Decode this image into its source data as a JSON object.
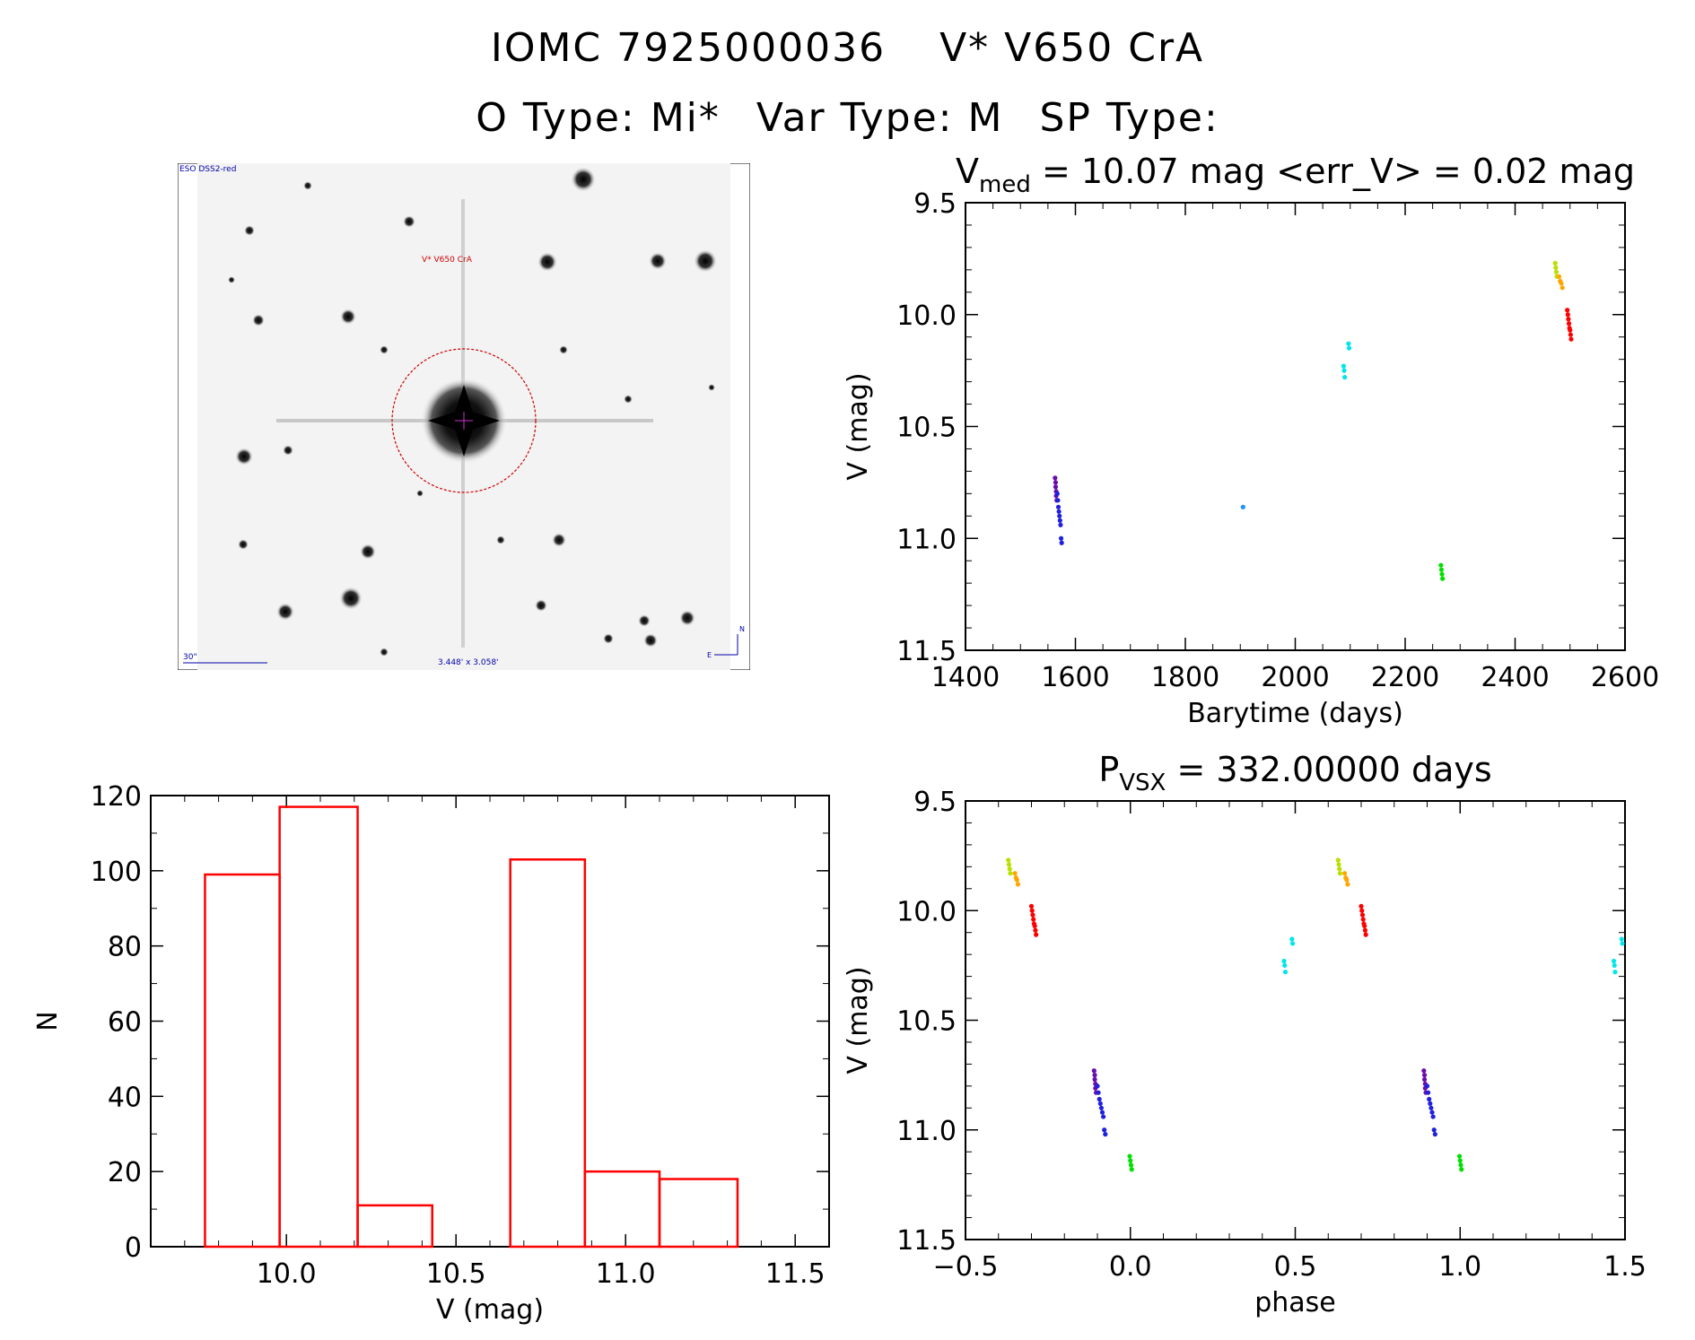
{
  "header": {
    "object_id": "IOMC 7925000036",
    "object_name": "V* V650 CrA",
    "o_type": "O Type: Mi*",
    "var_type": "Var Type: M",
    "sp_type": "SP Type:"
  },
  "finder_chart": {
    "survey_label": "ESO DSS2-red",
    "target_label": "V* V650 CrA",
    "scale_label": "30\"",
    "fov_label": "3.448' x 3.058'",
    "north_label": "N",
    "east_label": "E"
  },
  "colors": {
    "histogram": "#ff0000",
    "axis": "#000000",
    "circle": "#cc0000"
  },
  "chart_data": [
    {
      "id": "light_curve",
      "type": "scatter",
      "title_prefix": "V",
      "title_sub": "med",
      "title_rest": "= 10.07 mag <err_V> = 0.02 mag",
      "xlabel": "Barytime (days)",
      "ylabel": "V (mag)",
      "xlim": [
        1400,
        2600
      ],
      "ylim": [
        11.5,
        9.5
      ],
      "xticks": [
        1400,
        1600,
        1800,
        2000,
        2200,
        2400,
        2600
      ],
      "xtick_labels": [
        "1400",
        "1600",
        "1800",
        "2000",
        "2200",
        "2400",
        "2600"
      ],
      "yticks": [
        9.5,
        10.0,
        10.5,
        11.0,
        11.5
      ],
      "ytick_labels": [
        "9.5",
        "10.0",
        "10.5",
        "11.0",
        "11.5"
      ],
      "groups": [
        {
          "color": "#6a0dad",
          "x": [
            1563,
            1564,
            1564,
            1565,
            1565,
            1566
          ],
          "y": [
            10.73,
            10.75,
            10.77,
            10.79,
            10.81,
            10.83
          ]
        },
        {
          "color": "#2020e0",
          "x": [
            1567,
            1568,
            1569,
            1570,
            1571,
            1572,
            1573,
            1574,
            1575
          ],
          "y": [
            10.8,
            10.83,
            10.86,
            10.88,
            10.9,
            10.92,
            10.94,
            11.0,
            11.02
          ]
        },
        {
          "color": "#1e90ff",
          "x": [
            1905
          ],
          "y": [
            10.86
          ]
        },
        {
          "color": "#00e5ee",
          "x": [
            2088,
            2089,
            2090,
            2097,
            2098
          ],
          "y": [
            10.23,
            10.25,
            10.28,
            10.13,
            10.15
          ]
        },
        {
          "color": "#00e000",
          "x": [
            2265,
            2266,
            2267,
            2268
          ],
          "y": [
            11.12,
            11.14,
            11.16,
            11.18
          ]
        },
        {
          "color": "#b8e000",
          "x": [
            2473,
            2474,
            2475,
            2476
          ],
          "y": [
            9.77,
            9.79,
            9.81,
            9.83
          ]
        },
        {
          "color": "#ffa500",
          "x": [
            2480,
            2482,
            2484,
            2486
          ],
          "y": [
            9.83,
            9.85,
            9.86,
            9.88
          ]
        },
        {
          "color": "#ff0000",
          "x": [
            2495,
            2496,
            2497,
            2498,
            2499,
            2500,
            2501,
            2502
          ],
          "y": [
            9.98,
            10.0,
            10.02,
            10.04,
            10.06,
            10.07,
            10.09,
            10.11
          ]
        }
      ]
    },
    {
      "id": "phase_curve",
      "type": "scatter",
      "title_prefix": "P",
      "title_sub": "VSX",
      "title_rest": "= 332.00000 days",
      "xlabel": "phase",
      "ylabel": "V (mag)",
      "xlim": [
        -0.5,
        1.5
      ],
      "ylim": [
        11.5,
        9.5
      ],
      "xticks": [
        -0.5,
        0.0,
        0.5,
        1.0,
        1.5
      ],
      "xtick_labels": [
        "−0.5",
        "0.0",
        "0.5",
        "1.0",
        "1.5"
      ],
      "yticks": [
        9.5,
        10.0,
        10.5,
        11.0,
        11.5
      ],
      "ytick_labels": [
        "9.5",
        "10.0",
        "10.5",
        "11.0",
        "11.5"
      ],
      "groups": [
        {
          "color": "#b8e000",
          "x": [
            -0.37,
            -0.368,
            -0.366,
            -0.364,
            0.63,
            0.632,
            0.634,
            0.636
          ],
          "y": [
            9.77,
            9.79,
            9.81,
            9.83,
            9.77,
            9.79,
            9.81,
            9.83
          ]
        },
        {
          "color": "#ffa500",
          "x": [
            -0.35,
            -0.347,
            -0.344,
            -0.341,
            0.65,
            0.653,
            0.656,
            0.659
          ],
          "y": [
            9.83,
            9.85,
            9.86,
            9.88,
            9.83,
            9.85,
            9.86,
            9.88
          ]
        },
        {
          "color": "#ff0000",
          "x": [
            -0.3,
            -0.298,
            -0.296,
            -0.294,
            -0.292,
            -0.29,
            -0.288,
            -0.286,
            0.7,
            0.702,
            0.704,
            0.706,
            0.708,
            0.71,
            0.712,
            0.714
          ],
          "y": [
            9.98,
            10.0,
            10.02,
            10.04,
            10.06,
            10.07,
            10.09,
            10.11,
            9.98,
            10.0,
            10.02,
            10.04,
            10.06,
            10.07,
            10.09,
            10.11
          ]
        },
        {
          "color": "#6a0dad",
          "x": [
            -0.11,
            -0.108,
            -0.108,
            -0.106,
            -0.106,
            -0.104,
            0.89,
            0.892,
            0.892,
            0.894,
            0.894,
            0.896
          ],
          "y": [
            10.73,
            10.75,
            10.77,
            10.79,
            10.81,
            10.83,
            10.73,
            10.75,
            10.77,
            10.79,
            10.81,
            10.83
          ]
        },
        {
          "color": "#2020e0",
          "x": [
            -0.1,
            -0.097,
            -0.094,
            -0.091,
            -0.088,
            -0.085,
            -0.082,
            -0.079,
            -0.076,
            0.9,
            0.903,
            0.906,
            0.909,
            0.912,
            0.915,
            0.918,
            0.921,
            0.924
          ],
          "y": [
            10.8,
            10.83,
            10.86,
            10.88,
            10.9,
            10.92,
            10.94,
            11.0,
            11.02,
            10.8,
            10.83,
            10.86,
            10.88,
            10.9,
            10.92,
            10.94,
            11.0,
            11.02
          ]
        },
        {
          "color": "#00e000",
          "x": [
            -0.002,
            0.0,
            0.002,
            0.004,
            0.998,
            1.0,
            1.002,
            1.004
          ],
          "y": [
            11.12,
            11.14,
            11.16,
            11.18,
            11.12,
            11.14,
            11.16,
            11.18
          ]
        },
        {
          "color": "#00e5ee",
          "x": [
            0.466,
            0.468,
            0.47,
            0.49,
            0.492,
            1.466,
            1.468,
            1.47,
            1.49,
            1.492
          ],
          "y": [
            10.23,
            10.25,
            10.28,
            10.13,
            10.15,
            10.23,
            10.25,
            10.28,
            10.13,
            10.15
          ]
        }
      ]
    },
    {
      "id": "histogram",
      "type": "bar",
      "title": "",
      "xlabel": "V (mag)",
      "ylabel": "N",
      "xlim": [
        9.6,
        11.6
      ],
      "ylim": [
        0,
        120
      ],
      "xticks": [
        10.0,
        10.5,
        11.0,
        11.5
      ],
      "xtick_labels": [
        "10.0",
        "10.5",
        "11.0",
        "11.5"
      ],
      "yticks": [
        0,
        20,
        40,
        60,
        80,
        100,
        120
      ],
      "ytick_labels": [
        "0",
        "20",
        "40",
        "60",
        "80",
        "100",
        "120"
      ],
      "bin_edges": [
        9.76,
        9.98,
        10.21,
        10.43,
        10.66,
        10.88,
        11.1,
        11.33
      ],
      "counts": [
        99,
        117,
        11,
        0,
        103,
        20,
        18
      ]
    }
  ]
}
